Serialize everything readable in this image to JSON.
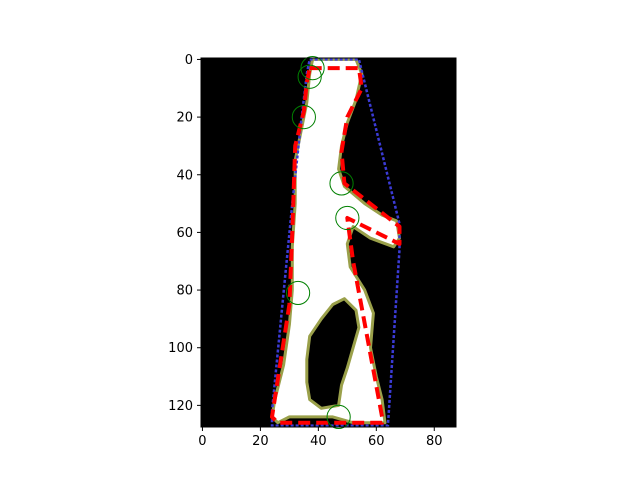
{
  "chart_data": {
    "type": "image-overlay",
    "title": "",
    "xlabel": "",
    "ylabel": "",
    "xlim": [
      -0.5,
      87.5
    ],
    "ylim": [
      127.5,
      -0.5
    ],
    "x_ticks": [
      0,
      20,
      40,
      60,
      80
    ],
    "y_ticks": [
      0,
      20,
      40,
      60,
      80,
      100,
      120
    ],
    "x_tick_labels": [
      "0",
      "20",
      "40",
      "60",
      "80"
    ],
    "y_tick_labels": [
      "0",
      "20",
      "40",
      "60",
      "80",
      "100",
      "120"
    ],
    "background_color": "#000000",
    "shape_fill_color": "#ffffff",
    "shape_edge_color": "#9aa04a",
    "shape_outer": [
      [
        38,
        0
      ],
      [
        53,
        0
      ],
      [
        55,
        5
      ],
      [
        53,
        14
      ],
      [
        50,
        22
      ],
      [
        48,
        30
      ],
      [
        47,
        38
      ],
      [
        49,
        44
      ],
      [
        56,
        50
      ],
      [
        62,
        54
      ],
      [
        67,
        56
      ],
      [
        68,
        62
      ],
      [
        66,
        65
      ],
      [
        58,
        62
      ],
      [
        52,
        58
      ],
      [
        50,
        64
      ],
      [
        51,
        72
      ],
      [
        56,
        80
      ],
      [
        59,
        88
      ],
      [
        58,
        100
      ],
      [
        60,
        110
      ],
      [
        62,
        118
      ],
      [
        63,
        126
      ],
      [
        52,
        126
      ],
      [
        45,
        124
      ],
      [
        38,
        124
      ],
      [
        30,
        124
      ],
      [
        26,
        126
      ],
      [
        24,
        124
      ],
      [
        25,
        118
      ],
      [
        28,
        106
      ],
      [
        30,
        92
      ],
      [
        31,
        80
      ],
      [
        31,
        65
      ],
      [
        32,
        50
      ],
      [
        32,
        35
      ],
      [
        34,
        25
      ],
      [
        36,
        15
      ],
      [
        37,
        5
      ]
    ],
    "shape_hole": [
      [
        49,
        83
      ],
      [
        53,
        87
      ],
      [
        54,
        93
      ],
      [
        52,
        100
      ],
      [
        50,
        107
      ],
      [
        48,
        113
      ],
      [
        47,
        120
      ],
      [
        41,
        121
      ],
      [
        37,
        118
      ],
      [
        36,
        112
      ],
      [
        36,
        104
      ],
      [
        37,
        96
      ],
      [
        41,
        90
      ],
      [
        45,
        85
      ]
    ],
    "convex_hull": {
      "color": "#3b3bd6",
      "points": [
        [
          37,
          0
        ],
        [
          54,
          0
        ],
        [
          68,
          57
        ],
        [
          68,
          66
        ],
        [
          64,
          127
        ],
        [
          24,
          127
        ],
        [
          24,
          122
        ],
        [
          31,
          50
        ],
        [
          34,
          22
        ],
        [
          36,
          5
        ]
      ]
    },
    "approx_contour": {
      "color": "#ff0000",
      "style": "dashed",
      "points": [
        [
          37,
          3
        ],
        [
          54,
          3
        ],
        [
          55,
          10
        ],
        [
          50,
          20
        ],
        [
          48,
          32
        ],
        [
          49,
          43
        ],
        [
          68,
          58
        ],
        [
          68,
          64
        ],
        [
          50,
          55
        ],
        [
          52,
          70
        ],
        [
          62,
          124
        ],
        [
          62,
          126
        ],
        [
          26,
          126
        ],
        [
          24,
          124
        ],
        [
          30,
          85
        ],
        [
          31,
          60
        ],
        [
          32,
          30
        ],
        [
          35,
          18
        ],
        [
          36,
          8
        ]
      ]
    },
    "defect_circles": {
      "color": "#008000",
      "radius": 4,
      "points": [
        [
          38,
          3
        ],
        [
          37,
          6
        ],
        [
          35,
          20
        ],
        [
          48,
          43
        ],
        [
          50,
          55
        ],
        [
          33,
          81
        ],
        [
          47,
          124
        ]
      ]
    }
  }
}
